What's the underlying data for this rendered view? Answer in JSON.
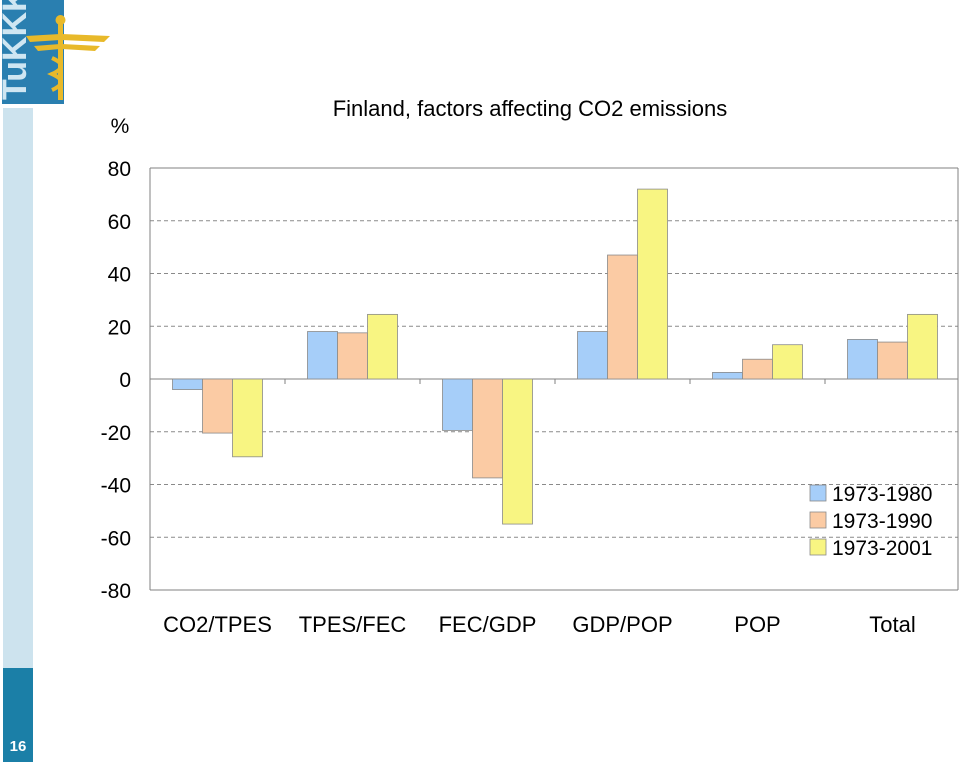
{
  "slide": {
    "logo_text": "TuKKK",
    "page_number": "16"
  },
  "chart_data": {
    "type": "bar",
    "title": "Finland, factors affecting CO2 emissions",
    "ylabel": "%",
    "xlabel": "",
    "ylim": [
      -80,
      80
    ],
    "yticks": [
      80,
      60,
      40,
      20,
      0,
      -20,
      -40,
      -60,
      -80
    ],
    "grid": true,
    "legend_position": "right",
    "categories": [
      "CO2/TPES",
      "TPES/FEC",
      "FEC/GDP",
      "GDP/POP",
      "POP",
      "Total"
    ],
    "series": [
      {
        "name": "1973-1980",
        "color": "#a6cef9",
        "values": [
          -4,
          18,
          -19.5,
          18,
          2.5,
          15
        ]
      },
      {
        "name": "1973-1990",
        "color": "#fbcba4",
        "values": [
          -20.5,
          17.5,
          -37.5,
          47,
          7.5,
          14
        ]
      },
      {
        "name": "1973-2001",
        "color": "#f8f582",
        "values": [
          -29.5,
          24.5,
          -55,
          72,
          13,
          24.5
        ]
      }
    ]
  }
}
